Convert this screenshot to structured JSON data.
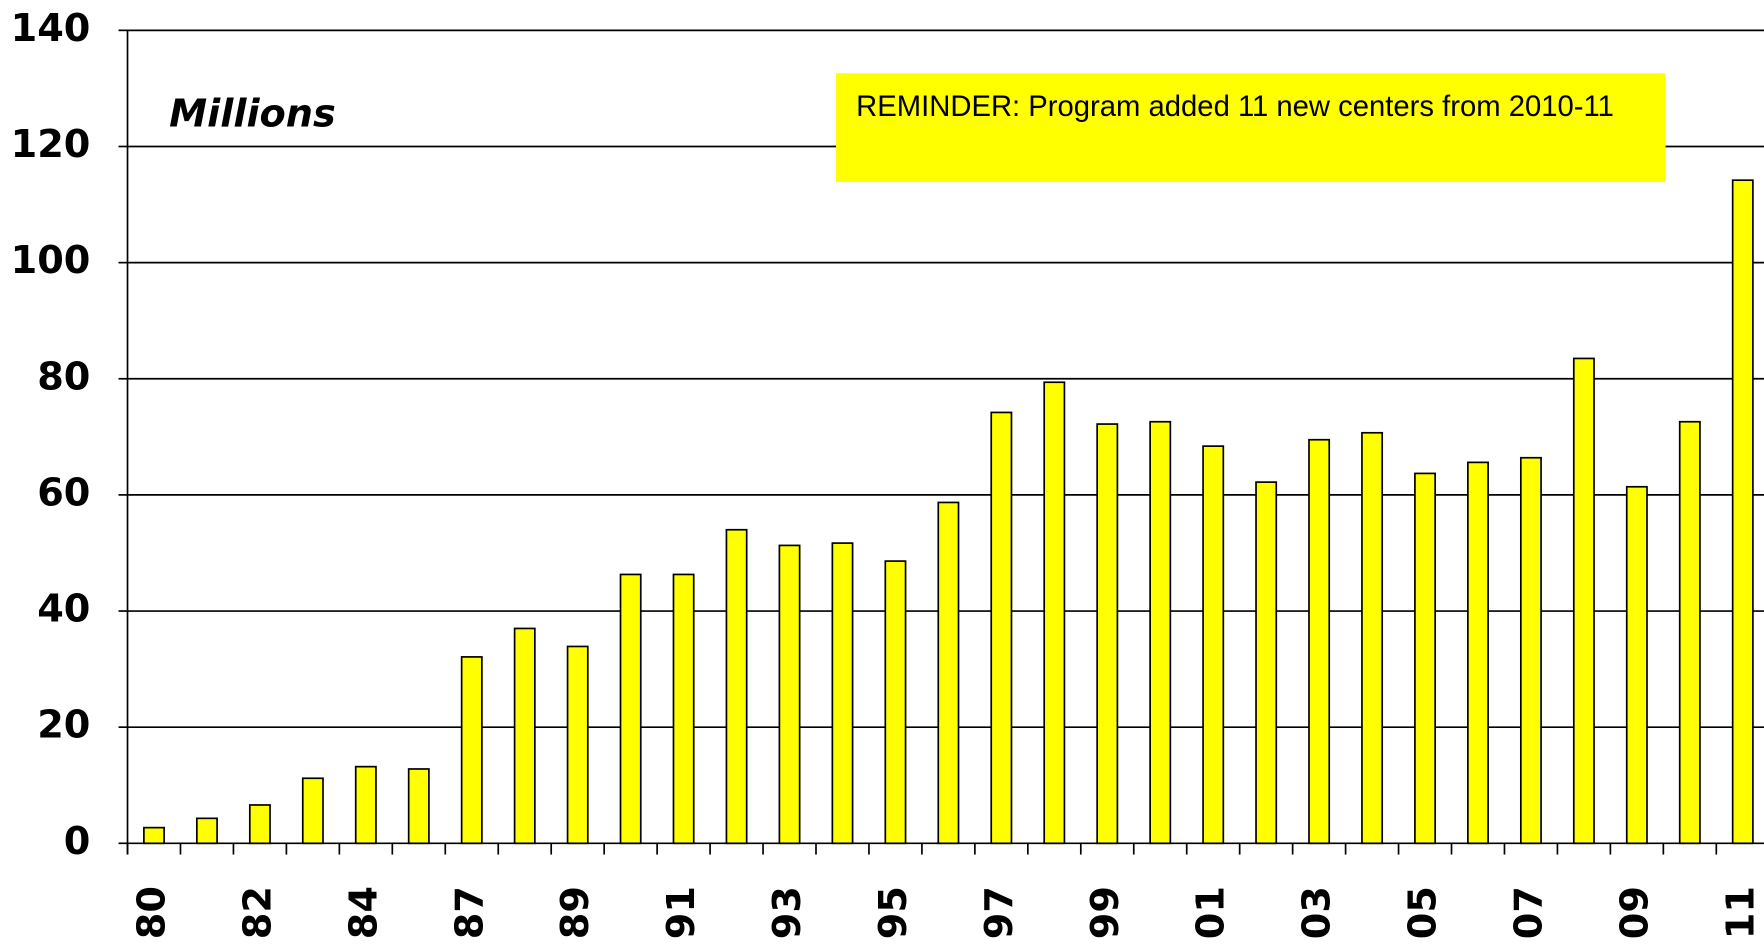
{
  "chart_data": {
    "type": "bar",
    "y_label": "Millions",
    "annotation": "REMINDER: Program added 11 new centers from 2010-11",
    "categories": [
      "80",
      null,
      "82",
      null,
      "84",
      null,
      "87",
      null,
      "89",
      null,
      "91",
      null,
      "93",
      null,
      "95",
      null,
      "97",
      null,
      "99",
      null,
      "01",
      null,
      "03",
      null,
      "05",
      null,
      "07",
      null,
      "09",
      null,
      "11"
    ],
    "values": [
      2.7,
      4.3,
      6.6,
      11.2,
      13.2,
      12.8,
      32.1,
      37,
      33.9,
      46.3,
      46.3,
      54,
      51.3,
      51.7,
      48.6,
      58.7,
      74.2,
      79.4,
      72.2,
      72.6,
      68.4,
      62.2,
      69.5,
      70.7,
      63.7,
      65.6,
      66.4,
      83.5,
      61.4,
      72.6,
      114.2
    ],
    "color": "#ffff00",
    "ylim": [
      0,
      140
    ],
    "yticks": [
      0,
      20,
      40,
      60,
      80,
      100,
      120,
      140
    ],
    "grid": true
  }
}
